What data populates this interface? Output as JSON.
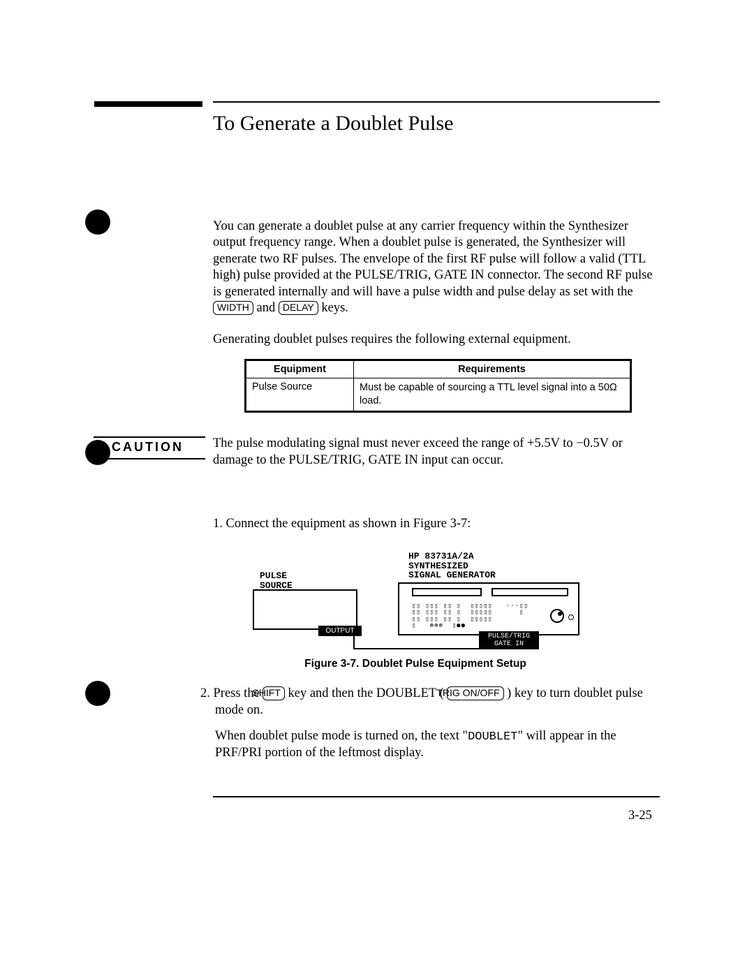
{
  "title": "To Generate a Doublet Pulse",
  "intro": {
    "p1a": "You can generate a doublet pulse at any carrier frequency within the Synthesizer output frequency range. When a doublet pulse is generated, the Synthesizer will generate two RF pulses. The envelope of the first RF pulse will follow a valid (TTL high) pulse provided at the PULSE/TRIG, GATE IN connector. The second RF pulse is generated internally and will have a pulse width and pulse delay as set with the ",
    "key1": "WIDTH",
    "mid": " and ",
    "key2": "DELAY",
    "p1b": " keys."
  },
  "gen_line": "Generating doublet pulses requires the following external equipment.",
  "table": {
    "headers": [
      "Equipment",
      "Requirements"
    ],
    "rows": [
      [
        "Pulse Source",
        "Must be capable of sourcing a TTL level signal into a 50Ω load."
      ]
    ]
  },
  "caution": {
    "label": "CAUTION",
    "text": "The pulse modulating signal must never exceed the range of +5.5V to −0.5V or damage to the PULSE/TRIG, GATE IN input can occur."
  },
  "step1": "1. Connect the equipment as shown in Figure 3-7:",
  "figure": {
    "pulse_label": "PULSE\nSOURCE",
    "synth_label": "HP 83731A/2A\nSYNTHESIZED\nSIGNAL GENERATOR",
    "output_tab": "OUTPUT",
    "synth_tab": "PULSE/TRIG\nGATE IN",
    "caption": "Figure 3-7. Doublet Pulse Equipment Setup",
    "keypad": "▯▯ ▯▯▯ ▯▯ ▯  ▯▯▯▯▯   ···▯▯\n▯▯ ▯▯▯ ▯▯ ▯  ▯▯▯▯▯      ▯\n▯▯ ▯▯▯ ▯▯ ▯  ▯▯▯▯▯\n▯   ⊚⊚⊚  ▯●●"
  },
  "step2": {
    "a": "2. Press the ",
    "k1": "SHIFT",
    "b": " key and then the DOUBLET (",
    "k2": "TRIG ON/OFF",
    "c": ") key to turn doublet pulse mode on."
  },
  "step2b": {
    "a": "When doublet pulse mode is turned on, the text \"",
    "mono": "DOUBLET",
    "b": "\" will appear in the PRF/PRI portion of the leftmost display."
  },
  "page_num": "3-25"
}
